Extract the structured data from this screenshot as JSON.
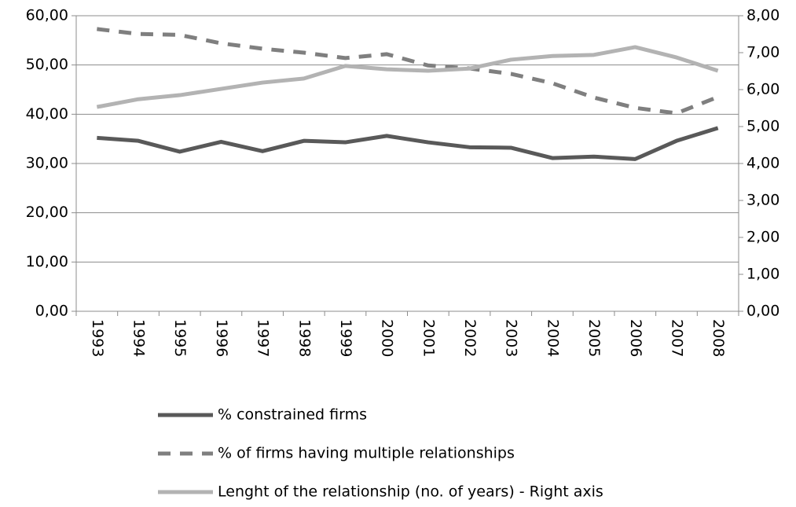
{
  "chart_data": {
    "type": "line",
    "categories": [
      "1993",
      "1994",
      "1995",
      "1996",
      "1997",
      "1998",
      "1999",
      "2000",
      "2001",
      "2002",
      "2003",
      "2004",
      "2005",
      "2006",
      "2007",
      "2008"
    ],
    "series": [
      {
        "name": "% constrained firms",
        "color": "#595959",
        "dashed": false,
        "values": [
          35.2,
          34.6,
          32.4,
          34.4,
          32.5,
          34.6,
          34.3,
          35.6,
          34.3,
          33.3,
          33.2,
          31.1,
          31.4,
          30.9,
          34.6,
          37.2
        ]
      },
      {
        "name": "% of firms having multiple relationships",
        "color": "#7f7f7f",
        "dashed": true,
        "values": [
          57.3,
          56.3,
          56.1,
          54.4,
          53.3,
          52.5,
          51.4,
          52.2,
          49.9,
          49.3,
          48.2,
          46.3,
          43.4,
          41.3,
          40.2,
          43.5
        ]
      },
      {
        "name": "Lenght of the relationship (no. of years) - Right axis",
        "color": "#b3b3b3",
        "dashed": false,
        "axis": "y2",
        "values": [
          5.53,
          5.74,
          5.85,
          6.02,
          6.19,
          6.3,
          6.64,
          6.55,
          6.51,
          6.57,
          6.81,
          6.91,
          6.94,
          7.15,
          6.87,
          6.51
        ]
      }
    ],
    "ylim": [
      0,
      60
    ],
    "yticks": [
      {
        "value": 0,
        "label": "0,00"
      },
      {
        "value": 10,
        "label": "10,00"
      },
      {
        "value": 20,
        "label": "20,00"
      },
      {
        "value": 30,
        "label": "30,00"
      },
      {
        "value": 40,
        "label": "40,00"
      },
      {
        "value": 50,
        "label": "50,00"
      },
      {
        "value": 60,
        "label": "60,00"
      }
    ],
    "y2lim": [
      0,
      8
    ],
    "y2ticks": [
      {
        "value": 0,
        "label": "0,00"
      },
      {
        "value": 1,
        "label": "1,00"
      },
      {
        "value": 2,
        "label": "2,00"
      },
      {
        "value": 3,
        "label": "3,00"
      },
      {
        "value": 4,
        "label": "4,00"
      },
      {
        "value": 5,
        "label": "5,00"
      },
      {
        "value": 6,
        "label": "6,00"
      },
      {
        "value": 7,
        "label": "7,00"
      },
      {
        "value": 8,
        "label": "8,00"
      }
    ],
    "grid": true,
    "legend": "bottom"
  }
}
